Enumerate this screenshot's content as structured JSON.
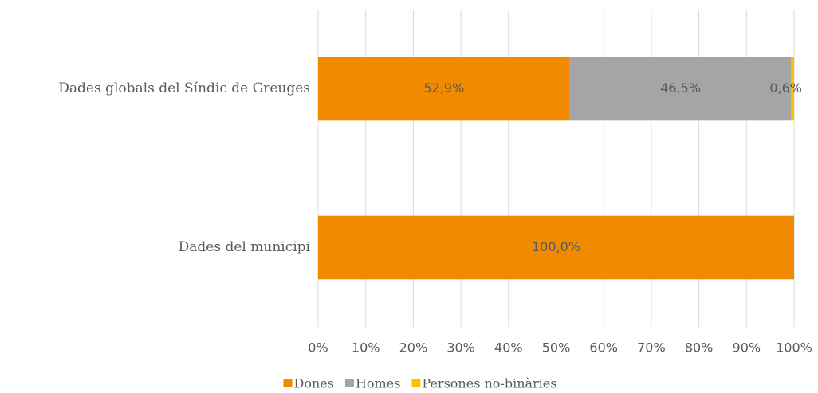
{
  "chart_data": {
    "type": "stacked_barh",
    "categories": [
      "Dades globals del Síndic de Greuges",
      "Dades del municipi"
    ],
    "series": [
      {
        "name": "Dones",
        "color": "#f08a00",
        "values": [
          52.9,
          100.0
        ],
        "value_labels": [
          "52,9%",
          "100,0%"
        ]
      },
      {
        "name": "Homes",
        "color": "#a5a5a5",
        "values": [
          46.5,
          0
        ],
        "value_labels": [
          "46,5%",
          null
        ]
      },
      {
        "name": "Persones no-binàries",
        "color": "#ffc000",
        "values": [
          0.6,
          0
        ],
        "value_labels": [
          "0,6%",
          null
        ]
      }
    ],
    "xlim": [
      0,
      100
    ],
    "xticks": [
      {
        "value": 0,
        "label": "0%"
      },
      {
        "value": 10,
        "label": "10%"
      },
      {
        "value": 20,
        "label": "20%"
      },
      {
        "value": 30,
        "label": "30%"
      },
      {
        "value": 40,
        "label": "40%"
      },
      {
        "value": 50,
        "label": "50%"
      },
      {
        "value": 60,
        "label": "60%"
      },
      {
        "value": 70,
        "label": "70%"
      },
      {
        "value": 80,
        "label": "80%"
      },
      {
        "value": 90,
        "label": "90%"
      },
      {
        "value": 100,
        "label": "100%"
      }
    ],
    "grid": true,
    "legend": "bottom"
  }
}
